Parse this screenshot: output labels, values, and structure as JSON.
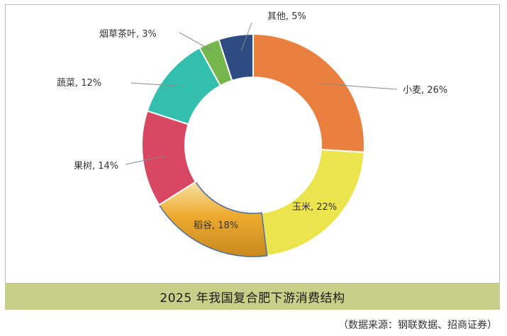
{
  "chart_data": {
    "type": "pie",
    "title": "2025 年我国复合肥下游消费结构",
    "source": "（数据来源：钢联数据、招商证券）",
    "legend": "none",
    "slices": [
      {
        "name": "小麦",
        "value": 26,
        "label": "小麦, 26%",
        "color": "#e98040"
      },
      {
        "name": "玉米",
        "value": 22,
        "label": "玉米, 22%",
        "color": "#ebe44d"
      },
      {
        "name": "稻谷",
        "value": 18,
        "label": "稻谷, 18%",
        "color": "#e5a437"
      },
      {
        "name": "果树",
        "value": 14,
        "label": "果树, 14%",
        "color": "#d84862"
      },
      {
        "name": "蔬菜",
        "value": 12,
        "label": "蔬菜, 12%",
        "color": "#33bfae"
      },
      {
        "name": "烟草茶叶",
        "value": 3,
        "label": "烟草茶叶, 3%",
        "color": "#75b74c"
      },
      {
        "name": "其他",
        "value": 5,
        "label": "其他, 5%",
        "color": "#2e4b82"
      }
    ]
  }
}
